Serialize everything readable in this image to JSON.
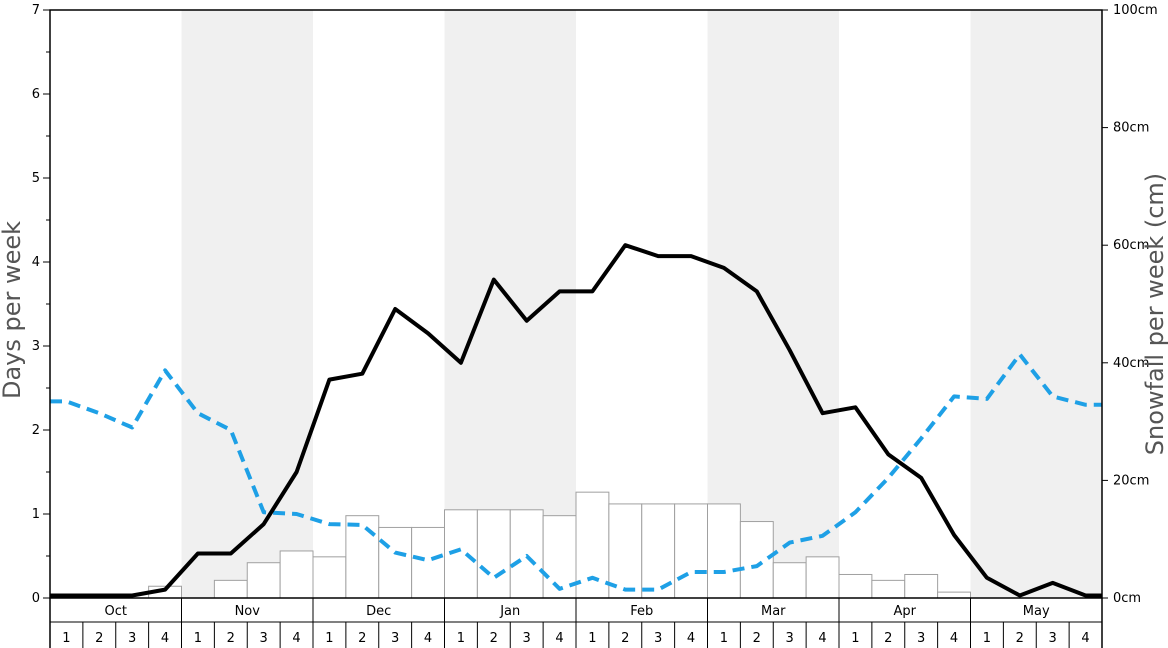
{
  "chart_data": {
    "type": "bar+line",
    "title": "",
    "ylabel_left": "Days per week",
    "ylabel_right": "Snowfall per week (cm)",
    "ylim_left": [
      0,
      7
    ],
    "ylim_right": [
      0,
      100
    ],
    "left_ticks": [
      "0",
      "1",
      "2",
      "3",
      "4",
      "5",
      "6",
      "7"
    ],
    "right_ticks": [
      "0cm",
      "20cm",
      "40cm",
      "60cm",
      "80cm",
      "100cm"
    ],
    "months": [
      "Oct",
      "Nov",
      "Dec",
      "Jan",
      "Feb",
      "Mar",
      "Apr",
      "May"
    ],
    "weeks": [
      "1",
      "2",
      "3",
      "4"
    ],
    "shaded_months": [
      "Nov",
      "Jan",
      "Mar",
      "May"
    ],
    "grid": false,
    "legend": "none",
    "colors": {
      "bars_fill": "#ffffff",
      "bars_stroke": "#a0a0a0",
      "days_line": "#000000",
      "dashed_line": "#1ea0e6",
      "month_shade": "#f0f0f0"
    },
    "snowfall_cm": [
      0,
      0,
      0,
      2,
      0,
      3,
      6,
      8,
      7,
      14,
      12,
      12,
      15,
      15,
      15,
      14,
      18,
      16,
      16,
      16,
      16,
      13,
      6,
      7,
      4,
      3,
      4,
      1,
      0,
      0,
      0,
      0
    ],
    "days_per_week": [
      0.03,
      0.03,
      0.03,
      0.1,
      0.53,
      0.53,
      0.88,
      1.5,
      2.6,
      2.67,
      3.44,
      3.15,
      2.8,
      3.79,
      3.3,
      3.65,
      3.65,
      4.2,
      4.07,
      4.07,
      3.93,
      3.65,
      2.95,
      2.2,
      2.27,
      1.71,
      1.43,
      0.75,
      0.24,
      0.03,
      0.18,
      0.03
    ],
    "dashed_series_left_units": [
      2.34,
      2.2,
      2.03,
      2.71,
      2.2,
      2.0,
      1.02,
      1.0,
      0.88,
      0.87,
      0.54,
      0.45,
      0.58,
      0.24,
      0.5,
      0.11,
      0.24,
      0.1,
      0.1,
      0.31,
      0.31,
      0.38,
      0.66,
      0.74,
      1.02,
      1.43,
      1.9,
      2.4,
      2.37,
      2.9,
      2.4,
      2.3
    ]
  }
}
